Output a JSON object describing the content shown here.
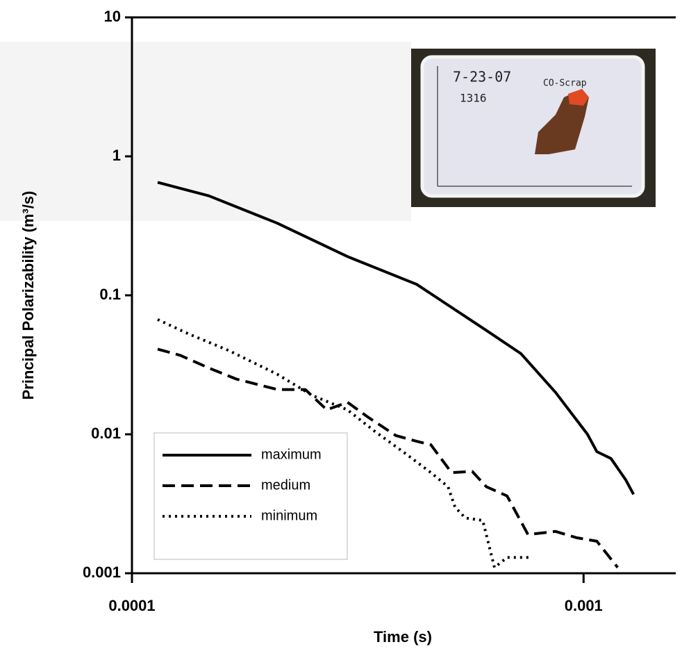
{
  "chart_data": {
    "type": "line",
    "x_label": "Time (s)",
    "y_label": "Principal Polarizability (m³/s)",
    "xscale": "log",
    "yscale": "log",
    "xlim": [
      0.0001,
      0.0016
    ],
    "ylim": [
      0.001,
      10
    ],
    "xticks": [
      0.0001,
      0.001
    ],
    "yticks": [
      0.001,
      0.01,
      0.1,
      1,
      10
    ],
    "legend": "lower left",
    "inset_annotations": [
      "7-23-07",
      "1316",
      "CO-Scrap"
    ],
    "series": [
      {
        "name": "maximum",
        "color": "#000000",
        "dash": "solid",
        "x": [
          0.000114,
          0.000148,
          0.00021,
          0.0003,
          0.000427,
          0.000609,
          0.000727,
          0.000867,
          0.00102,
          0.00107,
          0.00115,
          0.00124,
          0.00129
        ],
        "values": [
          0.65,
          0.52,
          0.33,
          0.19,
          0.12,
          0.056,
          0.038,
          0.02,
          0.01,
          0.0075,
          0.0067,
          0.0047,
          0.0037
        ]
      },
      {
        "name": "medium",
        "color": "#000000",
        "dash": "dashed",
        "x": [
          0.000114,
          0.000128,
          0.000148,
          0.00017,
          0.00021,
          0.000242,
          0.00027,
          0.0003,
          0.000333,
          0.000384,
          0.000427,
          0.000459,
          0.00051,
          0.000567,
          0.000609,
          0.000677,
          0.000753,
          0.000867,
          0.000966,
          0.00107,
          0.00119
        ],
        "values": [
          0.041,
          0.037,
          0.03,
          0.025,
          0.021,
          0.021,
          0.015,
          0.017,
          0.0133,
          0.0098,
          0.0089,
          0.0084,
          0.0053,
          0.0054,
          0.0042,
          0.0036,
          0.0019,
          0.002,
          0.0018,
          0.0017,
          0.0011
        ]
      },
      {
        "name": "minimum",
        "color": "#000000",
        "dash": "dotted",
        "x": [
          0.000114,
          0.000133,
          0.000164,
          0.00021,
          0.000251,
          0.0003,
          0.000345,
          0.000398,
          0.000459,
          0.000501,
          0.000519,
          0.000547,
          0.000598,
          0.000635,
          0.000677,
          0.000767
        ],
        "values": [
          0.067,
          0.053,
          0.04,
          0.027,
          0.019,
          0.015,
          0.0105,
          0.0075,
          0.0053,
          0.0042,
          0.003,
          0.0025,
          0.0024,
          0.0011,
          0.0013,
          0.0013
        ]
      }
    ]
  }
}
